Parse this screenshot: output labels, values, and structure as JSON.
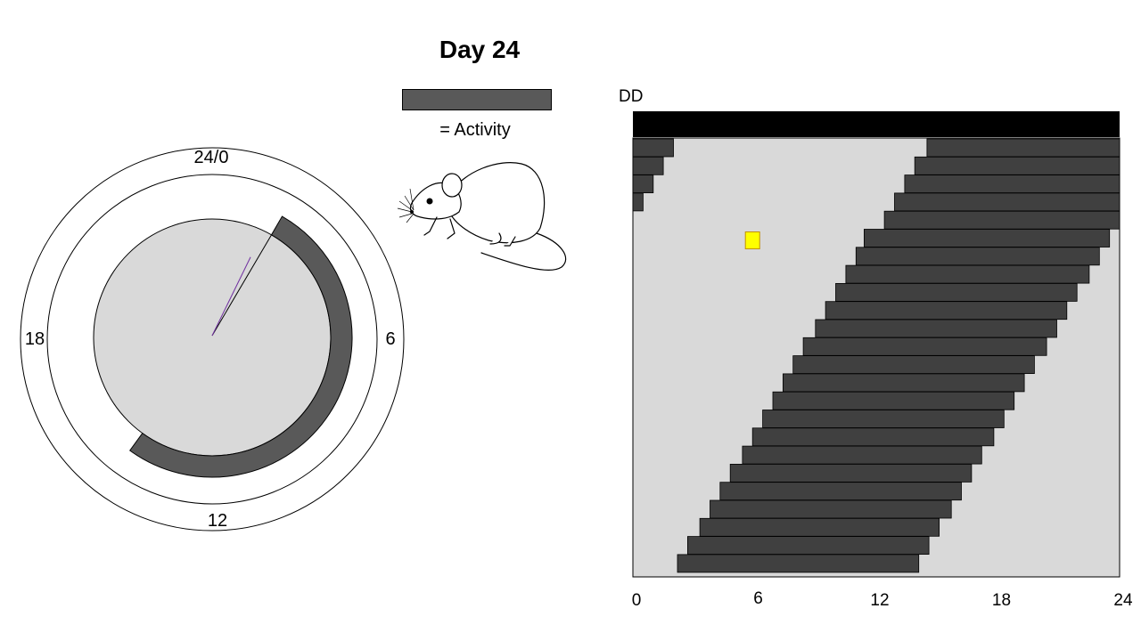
{
  "title": "Day 24",
  "legend": {
    "label": "= Activity",
    "color": "#595959"
  },
  "clock": {
    "labels": {
      "top": "24/0",
      "right": "6",
      "bottom": "12",
      "left": "18"
    },
    "activity_arc_hours": {
      "start": 2,
      "end": 14.4
    },
    "hand_hour": 1.7,
    "face_color": "#d9d9d9",
    "arc_color": "#595959",
    "hand_color": "#7030a0"
  },
  "actogram": {
    "condition_label": "DD",
    "x_ticks": [
      "0",
      "6",
      "12",
      "18",
      "24"
    ],
    "top_bar_color": "#000000",
    "background_color": "#d9d9d9",
    "bar_color": "#404040",
    "marker_color": "#ffff00",
    "marker_day": 6,
    "marker_hour": 5.9
  },
  "chart_data": {
    "type": "actogram",
    "xlabel": "",
    "ylabel": "",
    "xlim": [
      0,
      24
    ],
    "series": [
      {
        "day": 1,
        "segments": [
          [
            0,
            2.0
          ],
          [
            14.5,
            24
          ]
        ]
      },
      {
        "day": 2,
        "segments": [
          [
            0,
            1.5
          ],
          [
            13.9,
            24
          ]
        ]
      },
      {
        "day": 3,
        "segments": [
          [
            0,
            1.0
          ],
          [
            13.4,
            24
          ]
        ]
      },
      {
        "day": 4,
        "segments": [
          [
            0,
            0.5
          ],
          [
            12.9,
            24
          ]
        ]
      },
      {
        "day": 5,
        "segments": [
          [
            12.4,
            24
          ]
        ]
      },
      {
        "day": 6,
        "segments": [
          [
            11.4,
            23.5
          ]
        ]
      },
      {
        "day": 7,
        "segments": [
          [
            11.0,
            23.0
          ]
        ]
      },
      {
        "day": 8,
        "segments": [
          [
            10.5,
            22.5
          ]
        ]
      },
      {
        "day": 9,
        "segments": [
          [
            10.0,
            21.9
          ]
        ]
      },
      {
        "day": 10,
        "segments": [
          [
            9.5,
            21.4
          ]
        ]
      },
      {
        "day": 11,
        "segments": [
          [
            9.0,
            20.9
          ]
        ]
      },
      {
        "day": 12,
        "segments": [
          [
            8.4,
            20.4
          ]
        ]
      },
      {
        "day": 13,
        "segments": [
          [
            7.9,
            19.8
          ]
        ]
      },
      {
        "day": 14,
        "segments": [
          [
            7.4,
            19.3
          ]
        ]
      },
      {
        "day": 15,
        "segments": [
          [
            6.9,
            18.8
          ]
        ]
      },
      {
        "day": 16,
        "segments": [
          [
            6.4,
            18.3
          ]
        ]
      },
      {
        "day": 17,
        "segments": [
          [
            5.9,
            17.8
          ]
        ]
      },
      {
        "day": 18,
        "segments": [
          [
            5.4,
            17.2
          ]
        ]
      },
      {
        "day": 19,
        "segments": [
          [
            4.8,
            16.7
          ]
        ]
      },
      {
        "day": 20,
        "segments": [
          [
            4.3,
            16.2
          ]
        ]
      },
      {
        "day": 21,
        "segments": [
          [
            3.8,
            15.7
          ]
        ]
      },
      {
        "day": 22,
        "segments": [
          [
            3.3,
            15.1
          ]
        ]
      },
      {
        "day": 23,
        "segments": [
          [
            2.7,
            14.6
          ]
        ]
      },
      {
        "day": 24,
        "segments": [
          [
            2.2,
            14.1
          ]
        ]
      }
    ]
  }
}
